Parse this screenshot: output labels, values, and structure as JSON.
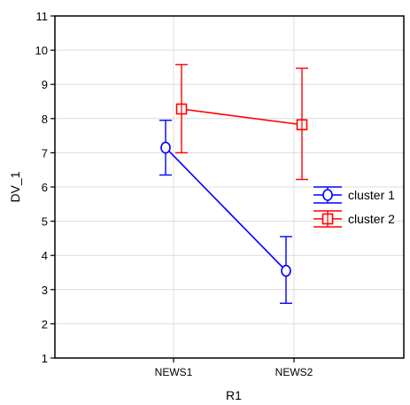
{
  "chart_data": {
    "type": "line",
    "xlabel": "R1",
    "ylabel": "DV_1",
    "categories": [
      "NEWS1",
      "NEWS2"
    ],
    "ylim": [
      1,
      11
    ],
    "yticks": [
      1,
      2,
      3,
      4,
      5,
      6,
      7,
      8,
      9,
      10,
      11
    ],
    "grid": true,
    "legend_position": "right",
    "error_bars": true,
    "series": [
      {
        "name": "cluster 1",
        "color": "#0000ff",
        "marker": "circle",
        "values": [
          7.15,
          3.55
        ],
        "lower": [
          6.35,
          2.6
        ],
        "upper": [
          7.95,
          4.55
        ]
      },
      {
        "name": "cluster 2",
        "color": "#ff0000",
        "marker": "square",
        "values": [
          8.28,
          7.82
        ],
        "lower": [
          7.0,
          6.22
        ],
        "upper": [
          9.58,
          9.47
        ]
      }
    ]
  }
}
